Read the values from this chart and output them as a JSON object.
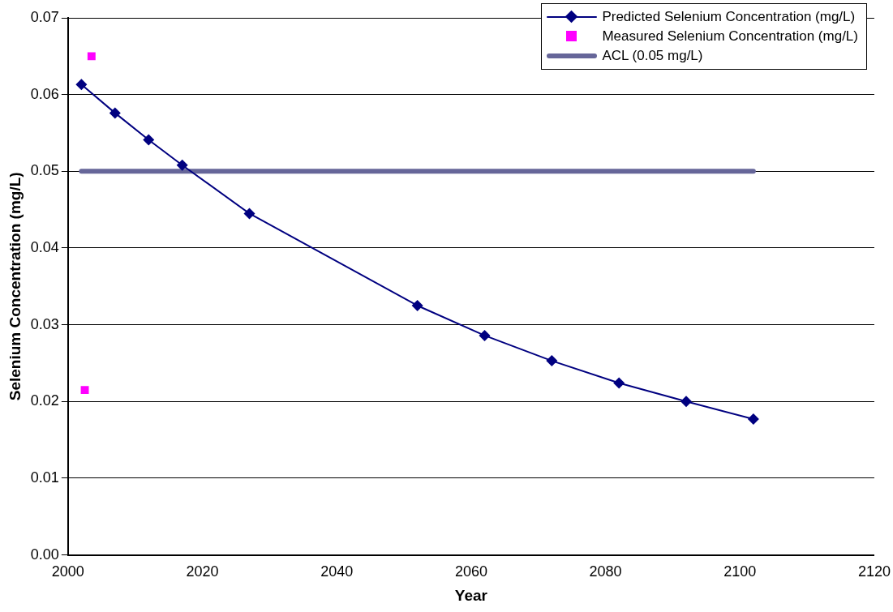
{
  "chart_data": {
    "type": "line",
    "xlabel": "Year",
    "ylabel": "Selenium Concentration (mg/L)",
    "xlim": [
      2000,
      2120
    ],
    "xticks": [
      2000,
      2020,
      2040,
      2060,
      2080,
      2100,
      2120
    ],
    "ylim": [
      0,
      0.07
    ],
    "yticks": [
      {
        "value": 0,
        "label": "0.00"
      },
      0.01,
      0.02,
      0.03,
      0.04,
      0.05,
      0.06,
      0.07
    ],
    "grid": "y",
    "legend": "top right",
    "series": [
      {
        "name": "Predicted Selenium Concentration (mg/L)",
        "marker": "diamond",
        "color": "#000080",
        "x": [
          2002,
          2007,
          2012,
          2017,
          2027,
          2052,
          2062,
          2072,
          2082,
          2092,
          2102
        ],
        "values": [
          0.0613,
          0.0576,
          0.0541,
          0.0508,
          0.0445,
          0.0325,
          0.0286,
          0.0253,
          0.0224,
          0.02,
          0.0177
        ]
      },
      {
        "name": "Measured Selenium Concentration (mg/L)",
        "type": "scatter",
        "marker": "square",
        "color": "#ff00ff",
        "x": [
          2003.5,
          2002.5
        ],
        "values": [
          0.065,
          0.0215
        ]
      },
      {
        "name": "ACL (0.05 mg/L)",
        "marker": "none",
        "color": "#666699",
        "x": [
          2002,
          2102
        ],
        "values": [
          0.05,
          0.05
        ]
      }
    ]
  }
}
